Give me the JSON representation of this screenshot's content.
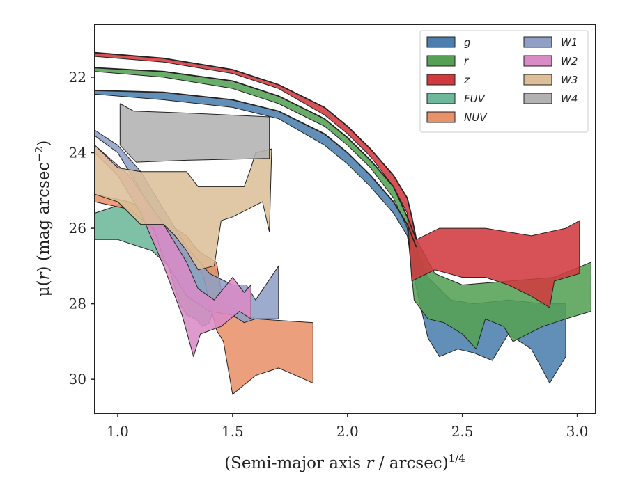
{
  "chart_data": {
    "type": "area",
    "title": "",
    "xlabel_prefix": "(Semi-major axis ",
    "xlabel_var": "r",
    "xlabel_mid": " / arcsec)",
    "xlabel_sup": "1/4",
    "ylabel_prefix": "μ(",
    "ylabel_var": "r",
    "ylabel_suffix": ") (mag arcsec",
    "ylabel_sup": "−2",
    "ylabel_end": ")",
    "xlim": [
      0.9,
      3.08
    ],
    "ylim": [
      30.9,
      20.6
    ],
    "y_inverted": true,
    "xticks": [
      1.0,
      1.5,
      2.0,
      2.5,
      3.0
    ],
    "xtick_labels": [
      "1.0",
      "1.5",
      "2.0",
      "2.5",
      "3.0"
    ],
    "yticks": [
      22,
      24,
      26,
      28,
      30
    ],
    "ytick_labels": [
      "22",
      "24",
      "26",
      "28",
      "30"
    ],
    "grid": false,
    "legend_position": "top-right",
    "legend_columns": 2,
    "series": [
      {
        "name": "g",
        "color": "#4c7fad",
        "upper": [
          [
            0.9,
            22.35
          ],
          [
            1.2,
            22.4
          ],
          [
            1.5,
            22.6
          ],
          [
            1.7,
            22.9
          ],
          [
            1.9,
            23.5
          ],
          [
            2.0,
            24.0
          ],
          [
            2.1,
            24.6
          ],
          [
            2.2,
            25.3
          ],
          [
            2.26,
            25.9
          ],
          [
            2.3,
            26.5
          ],
          [
            2.35,
            27.3
          ],
          [
            2.45,
            27.9
          ],
          [
            2.55,
            28.0
          ],
          [
            2.7,
            27.9
          ],
          [
            2.85,
            28.0
          ],
          [
            2.95,
            28.0
          ]
        ],
        "lower": [
          [
            2.95,
            29.4
          ],
          [
            2.88,
            30.1
          ],
          [
            2.8,
            29.2
          ],
          [
            2.7,
            28.8
          ],
          [
            2.63,
            29.5
          ],
          [
            2.55,
            29.3
          ],
          [
            2.48,
            29.2
          ],
          [
            2.4,
            29.4
          ],
          [
            2.35,
            28.9
          ],
          [
            2.3,
            27.6
          ],
          [
            2.26,
            26.2
          ],
          [
            2.2,
            25.6
          ],
          [
            2.1,
            24.9
          ],
          [
            2.0,
            24.3
          ],
          [
            1.9,
            23.8
          ],
          [
            1.7,
            23.1
          ],
          [
            1.5,
            22.8
          ],
          [
            1.2,
            22.6
          ],
          [
            0.9,
            22.45
          ]
        ]
      },
      {
        "name": "r",
        "color": "#55a055",
        "upper": [
          [
            0.9,
            21.75
          ],
          [
            1.2,
            21.85
          ],
          [
            1.5,
            22.1
          ],
          [
            1.7,
            22.5
          ],
          [
            1.9,
            23.1
          ],
          [
            2.0,
            23.6
          ],
          [
            2.1,
            24.2
          ],
          [
            2.2,
            24.9
          ],
          [
            2.26,
            25.7
          ],
          [
            2.3,
            26.3
          ],
          [
            2.38,
            27.2
          ],
          [
            2.5,
            27.5
          ],
          [
            2.7,
            27.4
          ],
          [
            2.9,
            27.3
          ],
          [
            3.06,
            26.9
          ]
        ],
        "lower": [
          [
            3.06,
            28.2
          ],
          [
            2.95,
            28.4
          ],
          [
            2.85,
            28.6
          ],
          [
            2.72,
            29.0
          ],
          [
            2.68,
            28.6
          ],
          [
            2.6,
            28.4
          ],
          [
            2.56,
            29.2
          ],
          [
            2.5,
            28.8
          ],
          [
            2.42,
            28.5
          ],
          [
            2.35,
            28.4
          ],
          [
            2.29,
            27.9
          ],
          [
            2.26,
            26.0
          ],
          [
            2.2,
            25.2
          ],
          [
            2.1,
            24.4
          ],
          [
            2.0,
            23.8
          ],
          [
            1.9,
            23.3
          ],
          [
            1.7,
            22.7
          ],
          [
            1.5,
            22.3
          ],
          [
            1.2,
            22.0
          ],
          [
            0.9,
            21.85
          ]
        ]
      },
      {
        "name": "z",
        "color": "#d03a3f",
        "upper": [
          [
            0.9,
            21.35
          ],
          [
            1.2,
            21.5
          ],
          [
            1.5,
            21.8
          ],
          [
            1.7,
            22.2
          ],
          [
            1.9,
            22.8
          ],
          [
            2.0,
            23.3
          ],
          [
            2.1,
            23.9
          ],
          [
            2.2,
            24.6
          ],
          [
            2.26,
            25.2
          ],
          [
            2.28,
            25.7
          ],
          [
            2.3,
            26.3
          ],
          [
            2.4,
            26.0
          ],
          [
            2.6,
            26.0
          ],
          [
            2.8,
            26.2
          ],
          [
            2.95,
            26.0
          ],
          [
            3.01,
            25.8
          ]
        ],
        "lower": [
          [
            3.01,
            27.2
          ],
          [
            2.9,
            27.4
          ],
          [
            2.88,
            28.1
          ],
          [
            2.8,
            27.8
          ],
          [
            2.7,
            27.5
          ],
          [
            2.6,
            27.3
          ],
          [
            2.5,
            27.3
          ],
          [
            2.38,
            27.1
          ],
          [
            2.28,
            27.4
          ],
          [
            2.26,
            25.6
          ],
          [
            2.2,
            24.9
          ],
          [
            2.1,
            24.1
          ],
          [
            2.0,
            23.5
          ],
          [
            1.9,
            23.0
          ],
          [
            1.7,
            22.3
          ],
          [
            1.5,
            21.9
          ],
          [
            1.2,
            21.6
          ],
          [
            0.9,
            21.45
          ]
        ]
      },
      {
        "name": "FUV",
        "color": "#6db89a",
        "upper": [
          [
            0.9,
            25.6
          ],
          [
            1.05,
            25.3
          ],
          [
            1.2,
            25.8
          ],
          [
            1.3,
            26.3
          ],
          [
            1.37,
            26.7
          ],
          [
            1.42,
            27.0
          ],
          [
            1.44,
            27.4
          ]
        ],
        "lower": [
          [
            1.44,
            27.6
          ],
          [
            1.4,
            28.5
          ],
          [
            1.37,
            28.6
          ],
          [
            1.34,
            28.4
          ],
          [
            1.3,
            28.3
          ],
          [
            1.27,
            28.0
          ],
          [
            1.22,
            27.0
          ],
          [
            1.15,
            26.6
          ],
          [
            1.0,
            26.3
          ],
          [
            0.9,
            26.3
          ]
        ]
      },
      {
        "name": "NUV",
        "color": "#e9926a",
        "upper": [
          [
            0.9,
            25.1
          ],
          [
            1.05,
            25.3
          ],
          [
            1.2,
            25.8
          ],
          [
            1.3,
            26.2
          ],
          [
            1.35,
            26.6
          ],
          [
            1.43,
            26.9
          ],
          [
            1.46,
            28.0
          ],
          [
            1.6,
            28.4
          ],
          [
            1.85,
            28.5
          ]
        ],
        "lower": [
          [
            1.85,
            30.1
          ],
          [
            1.7,
            29.7
          ],
          [
            1.6,
            29.9
          ],
          [
            1.5,
            30.4
          ],
          [
            1.46,
            29.0
          ],
          [
            1.43,
            28.7
          ],
          [
            1.37,
            27.2
          ],
          [
            1.25,
            26.5
          ],
          [
            1.05,
            25.5
          ],
          [
            0.9,
            25.3
          ]
        ]
      },
      {
        "name": "W1",
        "color": "#8f9fc5",
        "upper": [
          [
            0.9,
            23.4
          ],
          [
            1.0,
            23.8
          ],
          [
            1.1,
            24.5
          ],
          [
            1.2,
            25.5
          ],
          [
            1.3,
            26.5
          ],
          [
            1.4,
            27.2
          ],
          [
            1.5,
            27.5
          ],
          [
            1.56,
            27.5
          ],
          [
            1.6,
            27.9
          ],
          [
            1.7,
            27.0
          ],
          [
            1.7,
            28.4
          ]
        ],
        "lower": [
          [
            1.7,
            28.4
          ],
          [
            1.63,
            28.4
          ],
          [
            1.6,
            28.4
          ],
          [
            1.55,
            28.5
          ],
          [
            1.5,
            28.3
          ],
          [
            1.4,
            28.2
          ],
          [
            1.3,
            27.8
          ],
          [
            1.2,
            26.8
          ],
          [
            1.1,
            25.0
          ],
          [
            1.0,
            24.0
          ],
          [
            0.9,
            23.55
          ]
        ]
      },
      {
        "name": "W2",
        "color": "#d98bc6",
        "upper": [
          [
            0.9,
            23.8
          ],
          [
            1.05,
            24.6
          ],
          [
            1.2,
            25.9
          ],
          [
            1.3,
            26.9
          ],
          [
            1.35,
            27.6
          ],
          [
            1.42,
            27.9
          ],
          [
            1.5,
            27.3
          ],
          [
            1.55,
            27.7
          ],
          [
            1.58,
            27.5
          ]
        ],
        "lower": [
          [
            1.58,
            28.4
          ],
          [
            1.53,
            28.2
          ],
          [
            1.45,
            28.6
          ],
          [
            1.36,
            28.8
          ],
          [
            1.33,
            29.4
          ],
          [
            1.28,
            28.3
          ],
          [
            1.2,
            27.0
          ],
          [
            1.1,
            25.6
          ],
          [
            1.0,
            24.6
          ],
          [
            0.9,
            24.0
          ]
        ]
      },
      {
        "name": "W3",
        "color": "#dcbf98",
        "upper": [
          [
            0.9,
            23.8
          ],
          [
            1.0,
            24.4
          ],
          [
            1.1,
            24.5
          ],
          [
            1.2,
            24.5
          ],
          [
            1.3,
            24.5
          ],
          [
            1.35,
            24.9
          ],
          [
            1.45,
            24.9
          ],
          [
            1.55,
            24.9
          ],
          [
            1.58,
            24.4
          ],
          [
            1.6,
            24.0
          ],
          [
            1.67,
            23.9
          ]
        ],
        "lower": [
          [
            1.67,
            23.9
          ],
          [
            1.66,
            26.1
          ],
          [
            1.63,
            25.3
          ],
          [
            1.5,
            25.7
          ],
          [
            1.45,
            25.8
          ],
          [
            1.42,
            27.0
          ],
          [
            1.35,
            27.1
          ],
          [
            1.3,
            26.6
          ],
          [
            1.25,
            26.2
          ],
          [
            1.2,
            25.9
          ],
          [
            1.1,
            25.9
          ],
          [
            1.0,
            25.3
          ],
          [
            0.9,
            25.1
          ]
        ]
      },
      {
        "name": "W4",
        "color": "#b2b2b2",
        "upper": [
          [
            1.01,
            22.7
          ],
          [
            1.07,
            22.9
          ],
          [
            1.3,
            22.95
          ],
          [
            1.66,
            23.05
          ]
        ],
        "lower": [
          [
            1.66,
            24.15
          ],
          [
            1.3,
            24.2
          ],
          [
            1.08,
            24.25
          ],
          [
            1.01,
            23.8
          ]
        ]
      }
    ]
  }
}
